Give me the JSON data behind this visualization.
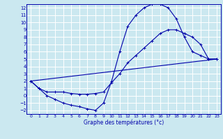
{
  "title": "Graphe des températures (°c)",
  "bg_color": "#cbe8f0",
  "grid_color": "#ffffff",
  "line_color": "#0000aa",
  "xlim": [
    -0.5,
    23.5
  ],
  "ylim": [
    -2.5,
    12.5
  ],
  "xticks": [
    0,
    1,
    2,
    3,
    4,
    5,
    6,
    7,
    8,
    9,
    10,
    11,
    12,
    13,
    14,
    15,
    16,
    17,
    18,
    19,
    20,
    21,
    22,
    23
  ],
  "yticks": [
    -2,
    -1,
    0,
    1,
    2,
    3,
    4,
    5,
    6,
    7,
    8,
    9,
    10,
    11,
    12
  ],
  "curve1_x": [
    0,
    1,
    2,
    3,
    4,
    5,
    6,
    7,
    8,
    9,
    10,
    11,
    12,
    13,
    14,
    15,
    16,
    17,
    18,
    19,
    20,
    21,
    22,
    23
  ],
  "curve1_y": [
    2,
    1,
    0,
    -0.5,
    -1,
    -1.3,
    -1.5,
    -1.8,
    -2,
    -1,
    2,
    6,
    9.5,
    11,
    12,
    12.5,
    12.5,
    12,
    10.5,
    8,
    6,
    5.5,
    5,
    5
  ],
  "curve2_x": [
    0,
    1,
    2,
    3,
    4,
    5,
    6,
    7,
    8,
    9,
    10,
    11,
    12,
    13,
    14,
    15,
    16,
    17,
    18,
    19,
    20,
    21,
    22,
    23
  ],
  "curve2_y": [
    2,
    1,
    0.5,
    0.5,
    0.5,
    0.3,
    0.2,
    0.2,
    0.3,
    0.5,
    1.8,
    3,
    4.5,
    5.5,
    6.5,
    7.5,
    8.5,
    9,
    9,
    8.5,
    8,
    7,
    5,
    5
  ],
  "curve3_x": [
    0,
    23
  ],
  "curve3_y": [
    2,
    5
  ]
}
